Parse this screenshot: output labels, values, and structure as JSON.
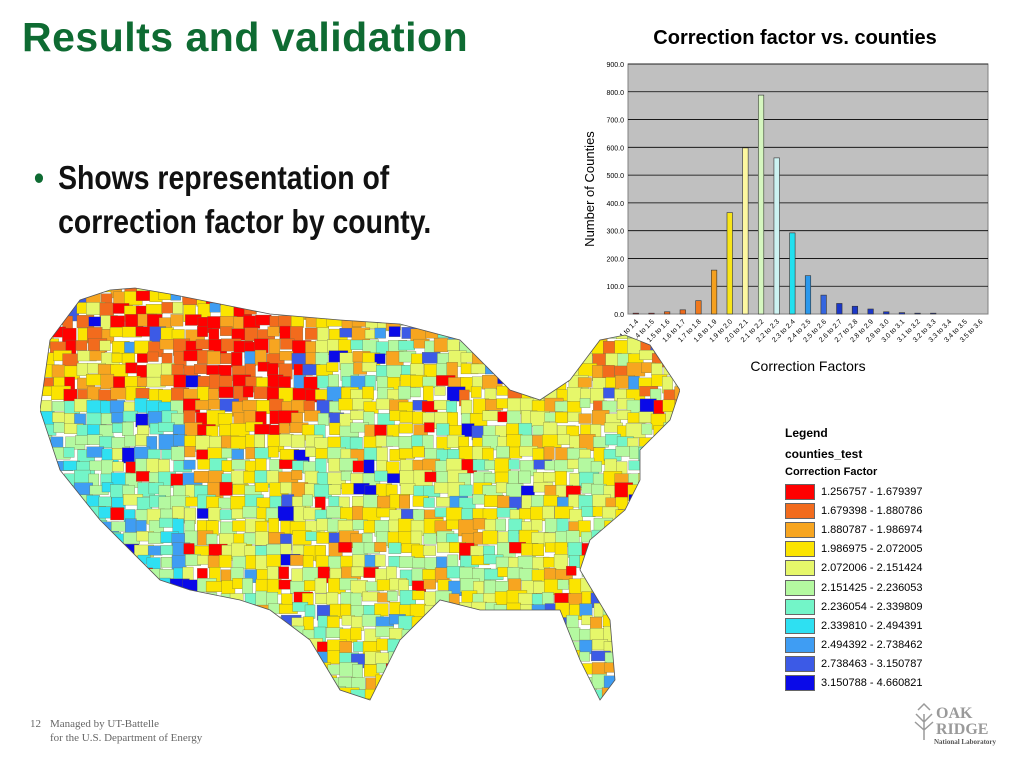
{
  "slide": {
    "title": "Results and validation",
    "bullet": "Shows representation of correction factor by county.",
    "page_number": "12",
    "footer_line1": "Managed by UT-Battelle",
    "footer_line2": "for the U.S. Department of Energy"
  },
  "logo": {
    "line1": "OAK",
    "line2": "RIDGE",
    "line3": "National Laboratory"
  },
  "chart_data": {
    "type": "bar",
    "title": "Correction factor vs. counties",
    "xlabel": "Correction Factors",
    "ylabel": "Number of Counties",
    "ylim": [
      0,
      900
    ],
    "yticks": [
      "0.0",
      "100.0",
      "200.0",
      "300.0",
      "400.0",
      "500.0",
      "600.0",
      "700.0",
      "800.0",
      "900.0"
    ],
    "grid": true,
    "categories": [
      "1 to 1.4",
      "1.4 to 1.5",
      "1.5 to 1.6",
      "1.6 to 1.7",
      "1.7 to 1.8",
      "1.8 to 1.9",
      "1.9 to 2.0",
      "2.0 to 2.1",
      "2.1 to 2.2",
      "2.2 to 2.3",
      "2.3 to 2.4",
      "2.4 to 2.5",
      "2.5 to 2.6",
      "2.6 to 2.7",
      "2.7 to 2.8",
      "2.8 to 2.9",
      "2.9 to 3.0",
      "3.0 to 3.1",
      "3.1 to 3.2",
      "3.2 to 3.3",
      "3.3 to 3.4",
      "3.4 to 3.5",
      "3.5 to 3.6"
    ],
    "values": [
      3,
      3,
      8,
      15,
      48,
      158,
      365,
      598,
      788,
      562,
      292,
      138,
      68,
      38,
      28,
      18,
      8,
      5,
      3,
      3,
      0,
      0,
      0
    ],
    "bar_colors": [
      "#e8141a",
      "#e8141a",
      "#ee6a1c",
      "#ee6a1c",
      "#f0781c",
      "#f5a01e",
      "#f8e51a",
      "#fdf7a0",
      "#d6f7c0",
      "#cdf3f2",
      "#22e0ef",
      "#2a98ec",
      "#3566e0",
      "#1b37c8",
      "#1b37c8",
      "#1b37c8",
      "#1b37c8",
      "#1b37c8",
      "#1b37c8",
      "#1b37c8",
      "#1b37c8",
      "#1b37c8",
      "#1b37c8"
    ],
    "plot_background": "#c0c0c0"
  },
  "legend": {
    "title": "Legend",
    "layer": "counties_test",
    "field": "Correction Factor",
    "items": [
      {
        "label": "1.256757 - 1.679397",
        "color": "#ff0000"
      },
      {
        "label": "1.679398 - 1.880786",
        "color": "#f26b1d"
      },
      {
        "label": "1.880787 - 1.986974",
        "color": "#f7a520"
      },
      {
        "label": "1.986975 - 2.072005",
        "color": "#fbe400"
      },
      {
        "label": "2.072006 - 2.151424",
        "color": "#e6f76a"
      },
      {
        "label": "2.151425 - 2.236053",
        "color": "#b4f9a0"
      },
      {
        "label": "2.236054 - 2.339809",
        "color": "#73f5c8"
      },
      {
        "label": "2.339810 - 2.494391",
        "color": "#2ee0f2"
      },
      {
        "label": "2.494392 - 2.738462",
        "color": "#3f9df3"
      },
      {
        "label": "2.738463 - 3.150787",
        "color": "#3c5ae6"
      },
      {
        "label": "3.150788 - 4.660821",
        "color": "#0a0ae8"
      }
    ]
  }
}
